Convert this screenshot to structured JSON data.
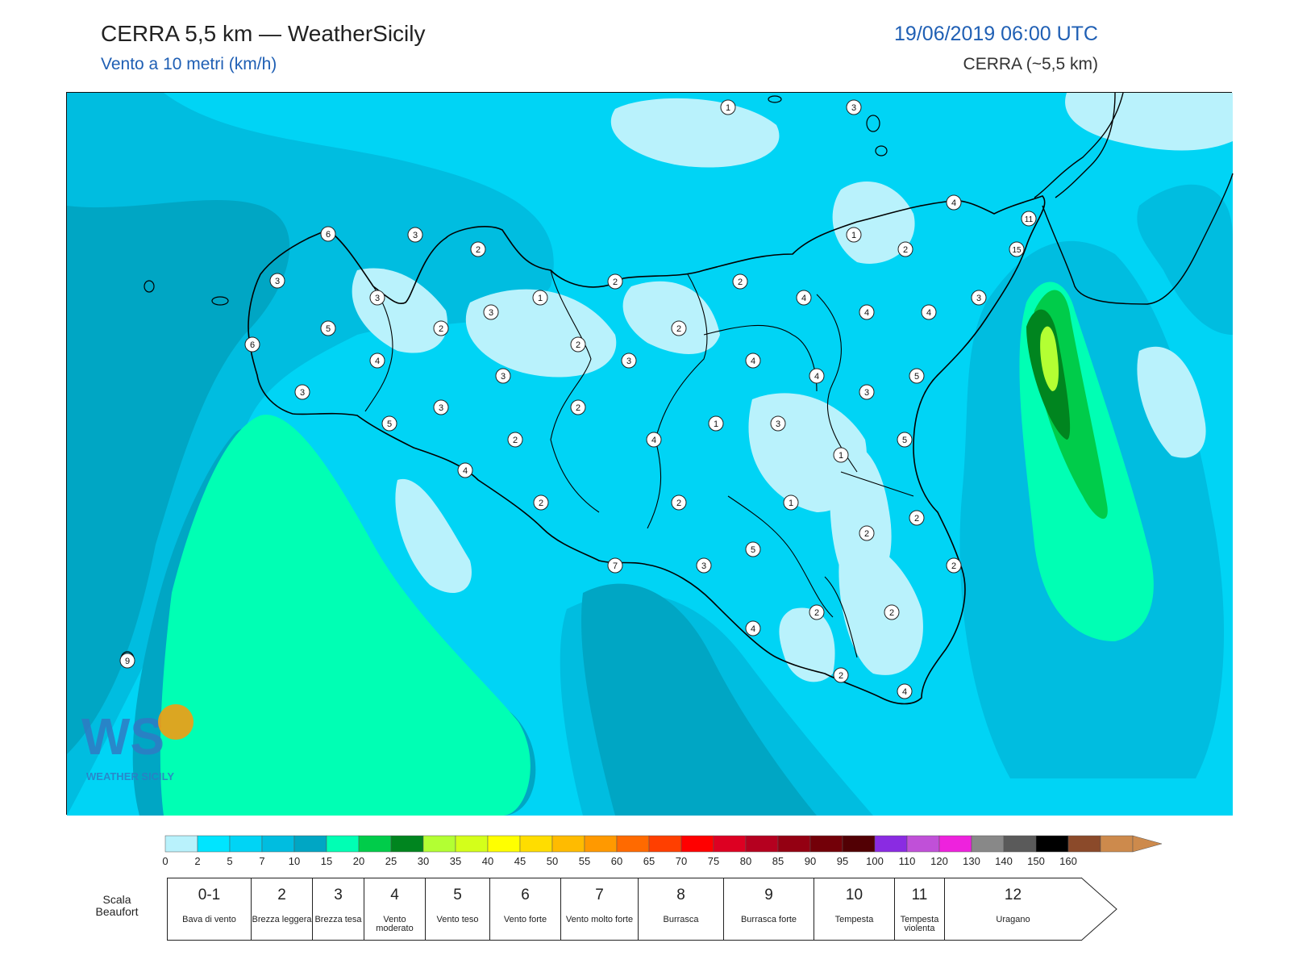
{
  "header": {
    "title": "CERRA 5,5 km — WeatherSicily",
    "subtitle": "Vento a 10 metri (km/h)",
    "datetime": "19/06/2019 06:00 UTC",
    "model": "CERRA (~5,5 km)"
  },
  "logo": {
    "text": "WEATHER SICILY",
    "name": "weathersicily-logo"
  },
  "colors": {
    "title_blue": "#1f5fb4",
    "scale": [
      "#b9f2fc",
      "#00e5ff",
      "#00d4f5",
      "#00bde0",
      "#00a6c4",
      "#00ffb4",
      "#00cc4a",
      "#00851f",
      "#b3ff33",
      "#d4ff1a",
      "#ffff00",
      "#ffdd00",
      "#ffbb00",
      "#ff9900",
      "#ff6a00",
      "#ff3f00",
      "#ff0000",
      "#dd0022",
      "#b5001f",
      "#940012",
      "#730008",
      "#520004",
      "#8a2be2",
      "#c050d8",
      "#ee22dd",
      "#888888",
      "#5a5a5a",
      "#000000",
      "#8b4a2a",
      "#cd8a4c"
    ]
  },
  "colorbar": {
    "ticks": [
      "0",
      "2",
      "5",
      "7",
      "10",
      "15",
      "20",
      "25",
      "30",
      "35",
      "40",
      "45",
      "50",
      "55",
      "60",
      "65",
      "70",
      "75",
      "80",
      "85",
      "90",
      "95",
      "100",
      "110",
      "120",
      "130",
      "140",
      "150",
      "160"
    ]
  },
  "beaufort": {
    "label": "Scala Beaufort",
    "classes": [
      {
        "num": "0-1",
        "name": "Bava di vento"
      },
      {
        "num": "2",
        "name": "Brezza leggera"
      },
      {
        "num": "3",
        "name": "Brezza tesa"
      },
      {
        "num": "4",
        "name": "Vento moderato"
      },
      {
        "num": "5",
        "name": "Vento teso"
      },
      {
        "num": "6",
        "name": "Vento forte"
      },
      {
        "num": "7",
        "name": "Vento molto forte"
      },
      {
        "num": "8",
        "name": "Burrasca"
      },
      {
        "num": "9",
        "name": "Burrasca forte"
      },
      {
        "num": "10",
        "name": "Tempesta"
      },
      {
        "num": "11",
        "name": "Tempesta violenta"
      },
      {
        "num": "12",
        "name": "Uragano"
      }
    ]
  },
  "station_values": [
    {
      "id": "s1",
      "v": "1"
    },
    {
      "id": "s2",
      "v": "3"
    },
    {
      "id": "s3",
      "v": "4"
    },
    {
      "id": "s4",
      "v": "11"
    },
    {
      "id": "s5",
      "v": "15"
    },
    {
      "id": "s6",
      "v": "6"
    },
    {
      "id": "s7",
      "v": "3"
    },
    {
      "id": "s8",
      "v": "2"
    },
    {
      "id": "s9",
      "v": "1"
    },
    {
      "id": "s10",
      "v": "2"
    },
    {
      "id": "s11",
      "v": "3"
    },
    {
      "id": "s12",
      "v": "3"
    },
    {
      "id": "s13",
      "v": "1"
    },
    {
      "id": "s14",
      "v": "2"
    },
    {
      "id": "s15",
      "v": "2"
    },
    {
      "id": "s16",
      "v": "4"
    },
    {
      "id": "s17",
      "v": "4"
    },
    {
      "id": "s18",
      "v": "4"
    },
    {
      "id": "s19",
      "v": "3"
    },
    {
      "id": "s20",
      "v": "5"
    },
    {
      "id": "s21",
      "v": "3"
    },
    {
      "id": "s22",
      "v": "2"
    },
    {
      "id": "s23",
      "v": "2"
    },
    {
      "id": "s24",
      "v": "6"
    },
    {
      "id": "s25",
      "v": "4"
    },
    {
      "id": "s26",
      "v": "2"
    },
    {
      "id": "s27",
      "v": "3"
    },
    {
      "id": "s28",
      "v": "4"
    },
    {
      "id": "s29",
      "v": "4"
    },
    {
      "id": "s30",
      "v": "5"
    },
    {
      "id": "s31",
      "v": "3"
    },
    {
      "id": "s32",
      "v": "3"
    },
    {
      "id": "s33",
      "v": "3"
    },
    {
      "id": "s34",
      "v": "3"
    },
    {
      "id": "s35",
      "v": "5"
    },
    {
      "id": "s36",
      "v": "2"
    },
    {
      "id": "s37",
      "v": "1"
    },
    {
      "id": "s38",
      "v": "3"
    },
    {
      "id": "s39",
      "v": "5"
    },
    {
      "id": "s40",
      "v": "4"
    },
    {
      "id": "s41",
      "v": "1"
    },
    {
      "id": "s42",
      "v": "2"
    },
    {
      "id": "s43",
      "v": "4"
    },
    {
      "id": "s44",
      "v": "2"
    },
    {
      "id": "s45",
      "v": "1"
    },
    {
      "id": "s46",
      "v": "2"
    },
    {
      "id": "s47",
      "v": "2"
    },
    {
      "id": "s48",
      "v": "7"
    },
    {
      "id": "s49",
      "v": "3"
    },
    {
      "id": "s50",
      "v": "5"
    },
    {
      "id": "s51",
      "v": "2"
    },
    {
      "id": "s52",
      "v": "2"
    },
    {
      "id": "s53",
      "v": "2"
    },
    {
      "id": "s54",
      "v": "4"
    },
    {
      "id": "s55",
      "v": "2"
    },
    {
      "id": "s56",
      "v": "4"
    },
    {
      "id": "s57",
      "v": "9"
    },
    {
      "id": "s58",
      "v": "2"
    }
  ]
}
